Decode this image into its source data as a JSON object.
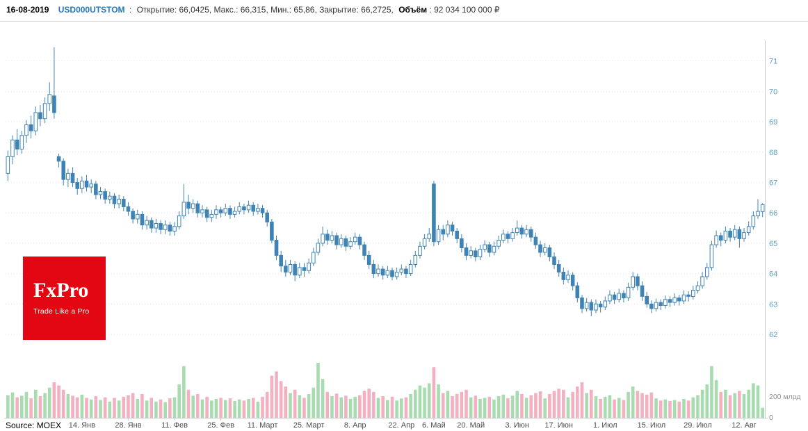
{
  "header": {
    "date": "16-08-2019",
    "ticker": "USD000UTSTOM",
    "separator": ":",
    "stats": "Открытие: 66,0425, Макс.: 66,315, Мин.: 65,86, Закрытие: 66,2725,",
    "volume_label": "Объём",
    "volume_value": ": 92 034 100 000 ₽"
  },
  "logo": {
    "line1": "FxPro",
    "line2": "Trade Like a Pro",
    "bg": "#e30613"
  },
  "footer": {
    "source": "Source: MOEX"
  },
  "chart_data": {
    "type": "candlestick",
    "instrument": "USD000UTSTOM",
    "title": "",
    "xlabel": "",
    "ylabel": "",
    "ylim": [
      61.8,
      72.0
    ],
    "grid": true,
    "legend": false,
    "price_axis_side": "right",
    "price_ticks": [
      62,
      63,
      64,
      65,
      66,
      67,
      68,
      69,
      70,
      71
    ],
    "volume_ticks": [
      {
        "value": 200,
        "label": "200 млрд"
      },
      {
        "value": 0,
        "label": "0"
      }
    ],
    "x_ticks": [
      {
        "i": 16,
        "label": "14. Янв"
      },
      {
        "i": 26,
        "label": "28. Янв"
      },
      {
        "i": 36,
        "label": "11. Фев"
      },
      {
        "i": 46,
        "label": "25. Фев"
      },
      {
        "i": 55,
        "label": "11. Март"
      },
      {
        "i": 65,
        "label": "25. Март"
      },
      {
        "i": 75,
        "label": "8. Апр"
      },
      {
        "i": 85,
        "label": "22. Апр"
      },
      {
        "i": 92,
        "label": "6. Май"
      },
      {
        "i": 100,
        "label": "20. Май"
      },
      {
        "i": 110,
        "label": "3. Июн"
      },
      {
        "i": 119,
        "label": "17. Июн"
      },
      {
        "i": 129,
        "label": "1. Июл"
      },
      {
        "i": 139,
        "label": "15. Июл"
      },
      {
        "i": 149,
        "label": "29. Июл"
      },
      {
        "i": 159,
        "label": "12. Авг"
      }
    ],
    "colors": {
      "candle": "#3f83b4",
      "candle_up_fill": "#ffffff",
      "vol_up": "#a8dcb0",
      "vol_down": "#f3b0c0",
      "grid": "#e4e4e4",
      "frame": "#cccccc"
    },
    "ohlcv_format": [
      "open",
      "high",
      "low",
      "close",
      "volume_bln_rub"
    ],
    "candles": [
      [
        67.3,
        68.05,
        67.05,
        67.85,
        210
      ],
      [
        67.85,
        68.55,
        67.6,
        68.4,
        235
      ],
      [
        68.4,
        68.75,
        67.9,
        68.1,
        190
      ],
      [
        68.1,
        68.7,
        67.95,
        68.55,
        205
      ],
      [
        68.55,
        69.05,
        68.3,
        68.9,
        240
      ],
      [
        68.9,
        69.2,
        68.45,
        68.7,
        180
      ],
      [
        68.7,
        69.5,
        68.55,
        69.3,
        260
      ],
      [
        69.3,
        69.55,
        68.85,
        69.1,
        200
      ],
      [
        69.1,
        69.8,
        68.95,
        69.6,
        230
      ],
      [
        69.6,
        70.3,
        69.35,
        69.9,
        280
      ],
      [
        69.85,
        71.45,
        69.1,
        69.3,
        330
      ],
      [
        67.85,
        67.95,
        67.5,
        67.7,
        300
      ],
      [
        67.7,
        67.8,
        66.9,
        67.1,
        260
      ],
      [
        67.1,
        67.45,
        66.85,
        67.3,
        220
      ],
      [
        67.3,
        67.5,
        66.85,
        67.0,
        205
      ],
      [
        67.0,
        67.15,
        66.6,
        66.8,
        190
      ],
      [
        66.8,
        67.2,
        66.65,
        67.05,
        215
      ],
      [
        67.05,
        67.25,
        66.7,
        66.85,
        185
      ],
      [
        66.85,
        67.1,
        66.65,
        66.95,
        170
      ],
      [
        66.95,
        67.05,
        66.45,
        66.6,
        200
      ],
      [
        66.6,
        66.85,
        66.45,
        66.7,
        165
      ],
      [
        66.7,
        66.8,
        66.3,
        66.45,
        190
      ],
      [
        66.45,
        66.7,
        66.3,
        66.55,
        150
      ],
      [
        66.55,
        66.65,
        66.15,
        66.3,
        185
      ],
      [
        66.3,
        66.6,
        66.15,
        66.45,
        160
      ],
      [
        66.45,
        66.55,
        66.05,
        66.2,
        195
      ],
      [
        66.2,
        66.35,
        65.9,
        66.05,
        210
      ],
      [
        66.05,
        66.15,
        65.65,
        65.8,
        230
      ],
      [
        65.8,
        66.1,
        65.65,
        65.95,
        175
      ],
      [
        65.95,
        66.05,
        65.45,
        65.6,
        220
      ],
      [
        65.6,
        65.9,
        65.45,
        65.75,
        160
      ],
      [
        65.75,
        65.85,
        65.35,
        65.5,
        185
      ],
      [
        65.5,
        65.8,
        65.35,
        65.65,
        150
      ],
      [
        65.65,
        65.75,
        65.3,
        65.45,
        170
      ],
      [
        65.45,
        65.75,
        65.3,
        65.6,
        145
      ],
      [
        65.6,
        65.7,
        65.25,
        65.4,
        180
      ],
      [
        65.4,
        65.7,
        65.25,
        65.55,
        190
      ],
      [
        65.55,
        66.05,
        65.45,
        65.9,
        310
      ],
      [
        65.9,
        66.95,
        65.8,
        66.35,
        480
      ],
      [
        66.35,
        66.6,
        65.95,
        66.15,
        260
      ],
      [
        66.15,
        66.45,
        66.0,
        66.3,
        205
      ],
      [
        66.3,
        66.4,
        65.85,
        66.0,
        220
      ],
      [
        66.0,
        66.25,
        65.85,
        66.1,
        170
      ],
      [
        66.1,
        66.2,
        65.7,
        65.85,
        195
      ],
      [
        65.85,
        66.1,
        65.7,
        65.95,
        160
      ],
      [
        65.95,
        66.25,
        65.8,
        66.1,
        175
      ],
      [
        66.1,
        66.2,
        65.85,
        66.0,
        185
      ],
      [
        66.0,
        66.3,
        65.9,
        66.15,
        165
      ],
      [
        66.15,
        66.25,
        65.8,
        65.95,
        180
      ],
      [
        65.95,
        66.2,
        65.85,
        66.05,
        155
      ],
      [
        66.05,
        66.35,
        65.95,
        66.2,
        170
      ],
      [
        66.2,
        66.3,
        65.95,
        66.1,
        160
      ],
      [
        66.1,
        66.4,
        66.0,
        66.25,
        175
      ],
      [
        66.25,
        66.35,
        65.9,
        66.05,
        185
      ],
      [
        66.05,
        66.3,
        65.95,
        66.15,
        150
      ],
      [
        66.15,
        66.25,
        65.85,
        66.0,
        195
      ],
      [
        66.0,
        66.1,
        65.55,
        65.7,
        240
      ],
      [
        65.7,
        65.8,
        65.0,
        65.1,
        390
      ],
      [
        65.1,
        65.25,
        64.45,
        64.6,
        430
      ],
      [
        64.6,
        64.75,
        64.05,
        64.25,
        340
      ],
      [
        64.25,
        64.45,
        63.9,
        64.05,
        290
      ],
      [
        64.05,
        64.45,
        63.95,
        64.3,
        230
      ],
      [
        64.3,
        64.4,
        63.75,
        63.95,
        260
      ],
      [
        63.95,
        64.35,
        63.85,
        64.2,
        210
      ],
      [
        64.2,
        64.35,
        63.9,
        64.1,
        185
      ],
      [
        64.1,
        64.5,
        64.0,
        64.35,
        220
      ],
      [
        64.35,
        64.85,
        64.25,
        64.7,
        280
      ],
      [
        64.7,
        65.15,
        64.6,
        65.0,
        510
      ],
      [
        65.0,
        65.55,
        64.9,
        65.3,
        360
      ],
      [
        65.3,
        65.45,
        64.95,
        65.1,
        240
      ],
      [
        65.1,
        65.4,
        65.0,
        65.25,
        200
      ],
      [
        65.25,
        65.35,
        64.8,
        64.95,
        225
      ],
      [
        64.95,
        65.3,
        64.85,
        65.15,
        190
      ],
      [
        65.15,
        65.25,
        64.75,
        64.9,
        205
      ],
      [
        64.9,
        65.2,
        64.8,
        65.05,
        175
      ],
      [
        65.05,
        65.35,
        64.95,
        65.2,
        195
      ],
      [
        65.2,
        65.3,
        64.8,
        64.95,
        210
      ],
      [
        64.95,
        65.05,
        64.45,
        64.6,
        250
      ],
      [
        64.6,
        64.75,
        64.15,
        64.3,
        270
      ],
      [
        64.3,
        64.45,
        63.85,
        64.0,
        240
      ],
      [
        64.0,
        64.3,
        63.9,
        64.15,
        185
      ],
      [
        64.15,
        64.25,
        63.8,
        63.95,
        200
      ],
      [
        63.95,
        64.25,
        63.85,
        64.1,
        165
      ],
      [
        64.1,
        64.2,
        63.78,
        63.9,
        195
      ],
      [
        63.9,
        64.2,
        63.8,
        64.05,
        160
      ],
      [
        64.05,
        64.3,
        63.95,
        64.15,
        180
      ],
      [
        64.15,
        64.25,
        63.85,
        64.0,
        190
      ],
      [
        64.0,
        64.45,
        63.92,
        64.3,
        220
      ],
      [
        64.3,
        64.75,
        64.2,
        64.6,
        260
      ],
      [
        64.6,
        65.05,
        64.5,
        64.9,
        300
      ],
      [
        64.9,
        65.3,
        64.8,
        65.15,
        280
      ],
      [
        65.15,
        65.5,
        65.05,
        65.3,
        320
      ],
      [
        66.95,
        67.05,
        64.9,
        65.05,
        470
      ],
      [
        65.05,
        65.6,
        64.95,
        65.45,
        310
      ],
      [
        65.45,
        65.6,
        65.1,
        65.3,
        230
      ],
      [
        65.3,
        65.75,
        65.2,
        65.6,
        250
      ],
      [
        65.6,
        65.7,
        65.25,
        65.4,
        200
      ],
      [
        65.4,
        65.5,
        65.0,
        65.15,
        220
      ],
      [
        65.15,
        65.3,
        64.7,
        64.85,
        240
      ],
      [
        64.85,
        65.0,
        64.45,
        64.6,
        260
      ],
      [
        64.6,
        64.9,
        64.5,
        64.75,
        190
      ],
      [
        64.75,
        64.85,
        64.4,
        64.55,
        205
      ],
      [
        64.55,
        64.95,
        64.45,
        64.8,
        175
      ],
      [
        64.8,
        65.1,
        64.7,
        64.95,
        185
      ],
      [
        64.95,
        65.05,
        64.55,
        64.7,
        195
      ],
      [
        64.7,
        65.05,
        64.6,
        64.9,
        170
      ],
      [
        64.9,
        65.25,
        64.8,
        65.1,
        200
      ],
      [
        65.1,
        65.45,
        65.0,
        65.3,
        215
      ],
      [
        65.3,
        65.4,
        65.0,
        65.15,
        180
      ],
      [
        65.15,
        65.5,
        65.05,
        65.35,
        205
      ],
      [
        65.35,
        65.75,
        65.25,
        65.5,
        250
      ],
      [
        65.5,
        65.6,
        65.15,
        65.3,
        220
      ],
      [
        65.3,
        65.6,
        65.2,
        65.45,
        185
      ],
      [
        65.45,
        65.55,
        65.05,
        65.2,
        210
      ],
      [
        65.2,
        65.35,
        64.82,
        64.95,
        230
      ],
      [
        64.95,
        65.08,
        64.55,
        64.7,
        245
      ],
      [
        64.7,
        65.0,
        64.6,
        64.85,
        180
      ],
      [
        64.85,
        64.95,
        64.4,
        64.55,
        220
      ],
      [
        64.55,
        64.7,
        64.15,
        64.3,
        250
      ],
      [
        64.3,
        64.45,
        63.9,
        64.05,
        270
      ],
      [
        64.05,
        64.2,
        63.65,
        63.8,
        260
      ],
      [
        63.8,
        64.1,
        63.7,
        63.95,
        190
      ],
      [
        63.95,
        64.05,
        63.45,
        63.6,
        240
      ],
      [
        63.6,
        63.72,
        63.05,
        63.2,
        290
      ],
      [
        63.2,
        63.3,
        62.7,
        62.85,
        330
      ],
      [
        62.85,
        63.2,
        62.75,
        63.05,
        230
      ],
      [
        63.05,
        63.15,
        62.6,
        62.8,
        260
      ],
      [
        62.8,
        63.15,
        62.7,
        63.0,
        200
      ],
      [
        63.0,
        63.1,
        62.72,
        62.9,
        175
      ],
      [
        62.9,
        63.25,
        62.8,
        63.1,
        195
      ],
      [
        63.1,
        63.45,
        63.0,
        63.3,
        210
      ],
      [
        63.3,
        63.4,
        63.0,
        63.15,
        170
      ],
      [
        63.15,
        63.5,
        63.05,
        63.35,
        185
      ],
      [
        63.35,
        63.45,
        63.05,
        63.2,
        165
      ],
      [
        63.2,
        63.7,
        63.1,
        63.55,
        240
      ],
      [
        63.55,
        64.05,
        63.45,
        63.9,
        290
      ],
      [
        63.9,
        64.0,
        63.45,
        63.6,
        250
      ],
      [
        63.6,
        63.75,
        63.1,
        63.25,
        230
      ],
      [
        63.25,
        63.4,
        62.88,
        63.0,
        215
      ],
      [
        63.0,
        63.12,
        62.7,
        62.85,
        235
      ],
      [
        62.85,
        63.18,
        62.75,
        63.05,
        180
      ],
      [
        63.05,
        63.15,
        62.8,
        62.95,
        160
      ],
      [
        62.95,
        63.28,
        62.85,
        63.15,
        170
      ],
      [
        63.15,
        63.25,
        62.9,
        63.05,
        155
      ],
      [
        63.05,
        63.35,
        62.95,
        63.2,
        165
      ],
      [
        63.2,
        63.3,
        62.95,
        63.1,
        150
      ],
      [
        63.1,
        63.45,
        63.0,
        63.3,
        175
      ],
      [
        63.3,
        63.42,
        63.08,
        63.25,
        160
      ],
      [
        63.25,
        63.6,
        63.15,
        63.45,
        190
      ],
      [
        63.45,
        63.75,
        63.35,
        63.6,
        210
      ],
      [
        63.6,
        64.05,
        63.5,
        63.9,
        260
      ],
      [
        63.9,
        64.35,
        63.8,
        64.2,
        310
      ],
      [
        64.2,
        65.08,
        64.1,
        64.95,
        480
      ],
      [
        64.95,
        65.42,
        64.85,
        65.25,
        350
      ],
      [
        65.25,
        65.35,
        64.9,
        65.1,
        240
      ],
      [
        65.1,
        65.55,
        65.0,
        65.4,
        260
      ],
      [
        65.4,
        65.5,
        65.05,
        65.2,
        210
      ],
      [
        65.2,
        65.6,
        65.1,
        65.45,
        230
      ],
      [
        65.45,
        65.55,
        64.85,
        65.15,
        250
      ],
      [
        65.15,
        65.5,
        65.05,
        65.35,
        220
      ],
      [
        65.35,
        65.72,
        65.25,
        65.55,
        260
      ],
      [
        65.55,
        66.05,
        65.45,
        65.9,
        320
      ],
      [
        65.9,
        66.45,
        65.8,
        66.05,
        300
      ],
      [
        66.0425,
        66.315,
        65.86,
        66.2725,
        92
      ]
    ]
  }
}
